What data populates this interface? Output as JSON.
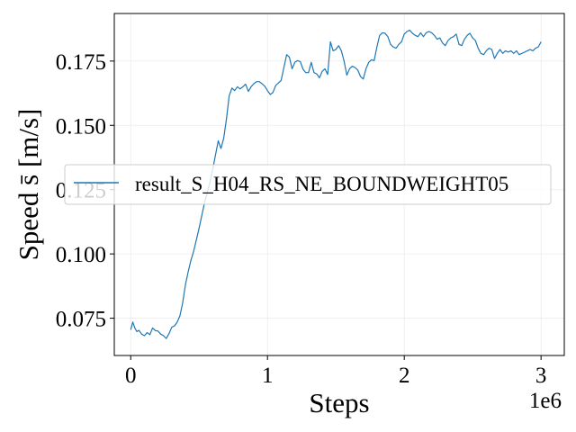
{
  "chart_data": {
    "type": "line",
    "title": "",
    "xlabel": "Steps",
    "ylabel": "Speed s̄ [m/s]",
    "x_offset_text": "1e6",
    "x_scale": 1000000,
    "xlim": [
      -120000,
      3170000
    ],
    "ylim": [
      0.0605,
      0.1935
    ],
    "xticks": [
      0,
      1000000,
      2000000,
      3000000
    ],
    "xtick_labels": [
      "0",
      "1",
      "2",
      "3"
    ],
    "yticks": [
      0.075,
      0.1,
      0.125,
      0.15,
      0.175
    ],
    "ytick_labels": [
      "0.075",
      "0.100",
      "0.125",
      "0.150",
      "0.175"
    ],
    "grid": true,
    "legend_position": "center-left",
    "color": "#1f77b4",
    "series": [
      {
        "name": "result_S_H04_RS_NE_BOUNDWEIGHT05",
        "x": [
          0,
          15000,
          30000,
          45000,
          60000,
          80000,
          100000,
          120000,
          140000,
          160000,
          180000,
          200000,
          220000,
          240000,
          260000,
          280000,
          300000,
          320000,
          340000,
          360000,
          380000,
          400000,
          420000,
          440000,
          460000,
          480000,
          500000,
          520000,
          540000,
          560000,
          580000,
          600000,
          620000,
          640000,
          660000,
          680000,
          700000,
          720000,
          740000,
          760000,
          780000,
          800000,
          820000,
          840000,
          860000,
          880000,
          900000,
          920000,
          940000,
          960000,
          980000,
          1000000,
          1020000,
          1040000,
          1060000,
          1080000,
          1100000,
          1120000,
          1140000,
          1160000,
          1180000,
          1200000,
          1220000,
          1240000,
          1260000,
          1280000,
          1300000,
          1320000,
          1340000,
          1360000,
          1380000,
          1400000,
          1420000,
          1440000,
          1450000,
          1460000,
          1480000,
          1500000,
          1520000,
          1540000,
          1560000,
          1580000,
          1600000,
          1620000,
          1640000,
          1660000,
          1680000,
          1700000,
          1720000,
          1740000,
          1760000,
          1780000,
          1800000,
          1820000,
          1840000,
          1860000,
          1880000,
          1900000,
          1920000,
          1940000,
          1960000,
          1980000,
          2000000,
          2020000,
          2040000,
          2060000,
          2080000,
          2100000,
          2120000,
          2140000,
          2160000,
          2180000,
          2200000,
          2220000,
          2240000,
          2260000,
          2280000,
          2300000,
          2320000,
          2340000,
          2360000,
          2380000,
          2400000,
          2420000,
          2440000,
          2460000,
          2480000,
          2500000,
          2520000,
          2540000,
          2560000,
          2580000,
          2600000,
          2620000,
          2640000,
          2660000,
          2680000,
          2700000,
          2720000,
          2740000,
          2760000,
          2780000,
          2800000,
          2820000,
          2840000,
          2860000,
          2880000,
          2900000,
          2920000,
          2940000,
          2960000,
          2980000,
          3000000
        ],
        "y": [
          0.0705,
          0.0735,
          0.0712,
          0.0698,
          0.0703,
          0.0688,
          0.0682,
          0.0694,
          0.0686,
          0.0712,
          0.0702,
          0.07,
          0.0688,
          0.0682,
          0.0671,
          0.069,
          0.0715,
          0.072,
          0.0735,
          0.076,
          0.081,
          0.088,
          0.093,
          0.0975,
          0.101,
          0.1055,
          0.11,
          0.115,
          0.12,
          0.124,
          0.128,
          0.133,
          0.1385,
          0.144,
          0.141,
          0.145,
          0.1525,
          0.1615,
          0.1645,
          0.1635,
          0.165,
          0.1642,
          0.165,
          0.166,
          0.1632,
          0.165,
          0.1662,
          0.167,
          0.167,
          0.1662,
          0.1652,
          0.1635,
          0.162,
          0.1628,
          0.1655,
          0.1665,
          0.1675,
          0.1725,
          0.1775,
          0.1765,
          0.172,
          0.1745,
          0.1752,
          0.1748,
          0.1718,
          0.1705,
          0.1705,
          0.1745,
          0.1705,
          0.17,
          0.1685,
          0.171,
          0.172,
          0.1698,
          0.176,
          0.1825,
          0.179,
          0.1795,
          0.181,
          0.179,
          0.175,
          0.1695,
          0.172,
          0.173,
          0.1725,
          0.1715,
          0.169,
          0.168,
          0.172,
          0.1745,
          0.1755,
          0.1752,
          0.1805,
          0.185,
          0.186,
          0.1858,
          0.1845,
          0.1815,
          0.1805,
          0.18,
          0.1815,
          0.1825,
          0.1855,
          0.1865,
          0.187,
          0.1858,
          0.185,
          0.1845,
          0.186,
          0.1845,
          0.186,
          0.1865,
          0.186,
          0.185,
          0.1835,
          0.184,
          0.182,
          0.181,
          0.183,
          0.184,
          0.1845,
          0.1855,
          0.1815,
          0.181,
          0.1835,
          0.185,
          0.1858,
          0.184,
          0.183,
          0.18,
          0.178,
          0.1775,
          0.179,
          0.18,
          0.1795,
          0.176,
          0.178,
          0.1795,
          0.178,
          0.179,
          0.1785,
          0.179,
          0.178,
          0.179,
          0.1775,
          0.178,
          0.1785,
          0.179,
          0.1795,
          0.179,
          0.18,
          0.1805,
          0.1825
        ]
      }
    ]
  }
}
